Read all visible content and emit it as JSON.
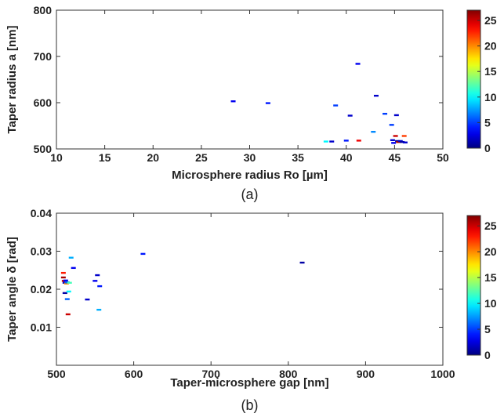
{
  "chart_data": [
    {
      "type": "scatter",
      "panel_label": "(a)",
      "xlabel": "Microsphere radius Ro [µm]",
      "ylabel": "Taper radius a [nm]",
      "xlim": [
        10,
        50
      ],
      "ylim": [
        500,
        800
      ],
      "xticks": [
        "10",
        "15",
        "20",
        "25",
        "30",
        "35",
        "40",
        "45",
        "50"
      ],
      "yticks": [
        "500",
        "600",
        "700",
        "800"
      ],
      "colorbar": {
        "range": [
          0,
          27
        ],
        "ticks": [
          "0",
          "5",
          "10",
          "15",
          "20",
          "25"
        ]
      },
      "points": [
        {
          "x": 28.3,
          "y": 603,
          "c": 3
        },
        {
          "x": 31.9,
          "y": 599,
          "c": 4
        },
        {
          "x": 37.9,
          "y": 516,
          "c": 10
        },
        {
          "x": 38.5,
          "y": 516,
          "c": 2
        },
        {
          "x": 38.9,
          "y": 594,
          "c": 5
        },
        {
          "x": 40.0,
          "y": 518,
          "c": 4
        },
        {
          "x": 40.4,
          "y": 572,
          "c": 2
        },
        {
          "x": 41.2,
          "y": 684,
          "c": 3
        },
        {
          "x": 41.3,
          "y": 518,
          "c": 24
        },
        {
          "x": 42.8,
          "y": 537,
          "c": 7
        },
        {
          "x": 43.1,
          "y": 615,
          "c": 2
        },
        {
          "x": 44.0,
          "y": 576,
          "c": 5
        },
        {
          "x": 44.7,
          "y": 552,
          "c": 5
        },
        {
          "x": 44.8,
          "y": 519,
          "c": 2
        },
        {
          "x": 44.9,
          "y": 513,
          "c": 3
        },
        {
          "x": 45.1,
          "y": 528,
          "c": 25
        },
        {
          "x": 45.2,
          "y": 573,
          "c": 2
        },
        {
          "x": 45.3,
          "y": 517,
          "c": 1
        },
        {
          "x": 45.4,
          "y": 515,
          "c": 26
        },
        {
          "x": 45.6,
          "y": 517,
          "c": 2
        },
        {
          "x": 45.8,
          "y": 515,
          "c": 1
        },
        {
          "x": 46.0,
          "y": 528,
          "c": 22
        },
        {
          "x": 46.1,
          "y": 514,
          "c": 2
        }
      ]
    },
    {
      "type": "scatter",
      "panel_label": "(b)",
      "xlabel": "Taper-microsphere gap [nm]",
      "ylabel": "Taper angle δ [rad]",
      "xlim": [
        500,
        1000
      ],
      "ylim": [
        0,
        0.04
      ],
      "xticks": [
        "500",
        "600",
        "700",
        "800",
        "900",
        "1000"
      ],
      "yticks": [
        "0.01",
        "0.02",
        "0.03",
        "0.04"
      ],
      "colorbar": {
        "range": [
          0,
          27
        ],
        "ticks": [
          "0",
          "5",
          "10",
          "15",
          "20",
          "25"
        ]
      },
      "points": [
        {
          "x": 509,
          "y": 0.0243,
          "c": 23
        },
        {
          "x": 509,
          "y": 0.0231,
          "c": 26
        },
        {
          "x": 510,
          "y": 0.0222,
          "c": 25
        },
        {
          "x": 511,
          "y": 0.0217,
          "c": 2
        },
        {
          "x": 511,
          "y": 0.019,
          "c": 1
        },
        {
          "x": 512,
          "y": 0.0223,
          "c": 3
        },
        {
          "x": 513,
          "y": 0.0215,
          "c": 20
        },
        {
          "x": 514,
          "y": 0.0218,
          "c": 6
        },
        {
          "x": 514,
          "y": 0.0174,
          "c": 6
        },
        {
          "x": 515,
          "y": 0.0134,
          "c": 25
        },
        {
          "x": 516,
          "y": 0.0194,
          "c": 10
        },
        {
          "x": 517,
          "y": 0.0217,
          "c": 12
        },
        {
          "x": 519,
          "y": 0.0283,
          "c": 8
        },
        {
          "x": 522,
          "y": 0.0256,
          "c": 3
        },
        {
          "x": 540,
          "y": 0.0173,
          "c": 2
        },
        {
          "x": 550,
          "y": 0.0222,
          "c": 3
        },
        {
          "x": 553,
          "y": 0.0237,
          "c": 2
        },
        {
          "x": 555,
          "y": 0.0146,
          "c": 8
        },
        {
          "x": 556,
          "y": 0.0208,
          "c": 4
        },
        {
          "x": 612,
          "y": 0.0293,
          "c": 4
        },
        {
          "x": 818,
          "y": 0.027,
          "c": 1
        }
      ]
    }
  ]
}
